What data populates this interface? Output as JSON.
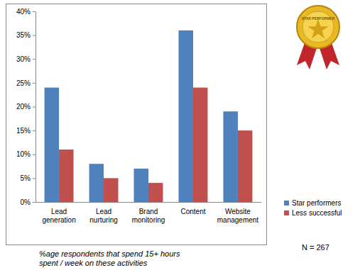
{
  "chart_data": {
    "type": "bar",
    "categories": [
      "Lead generation",
      "Lead nurturing",
      "Brand monitoring",
      "Content",
      "Website management"
    ],
    "series": [
      {
        "name": "Star performers",
        "color": "#4f81bd",
        "values": [
          24,
          8,
          7,
          36,
          19
        ]
      },
      {
        "name": "Less successful",
        "color": "#c0504d",
        "values": [
          11,
          5,
          4,
          24,
          15
        ]
      }
    ],
    "ylim": [
      0,
      40
    ],
    "yticks": [
      {
        "value": 0,
        "label": "0%"
      },
      {
        "value": 5,
        "label": "5%"
      },
      {
        "value": 10,
        "label": "10%"
      },
      {
        "value": 15,
        "label": "15%"
      },
      {
        "value": 20,
        "label": "20%"
      },
      {
        "value": 25,
        "label": "25%"
      },
      {
        "value": 30,
        "label": "30%"
      },
      {
        "value": 35,
        "label": "35%"
      },
      {
        "value": 40,
        "label": "40%"
      }
    ],
    "grid": false,
    "legend": "right",
    "annotations": [
      "%age respondents that spend 15+ hours spent / week on these activities",
      "N = 267",
      "STAR PERFORMER"
    ]
  }
}
